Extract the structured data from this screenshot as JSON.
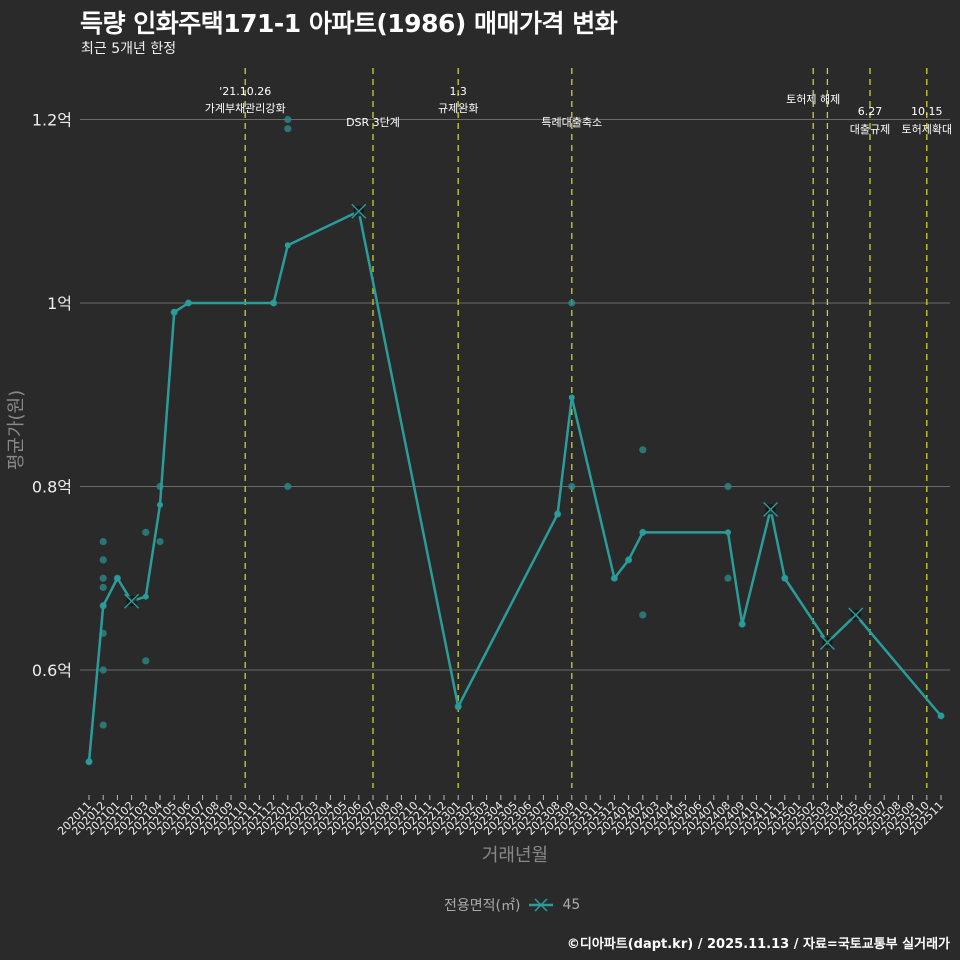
{
  "header": {
    "title": "득량 인화주택171-1 아파트(1986) 매매가격 변화",
    "subtitle": "최근 5개년 한정"
  },
  "footer": {
    "caption": "©디아파트(dapt.kr) / 2025.11.13 / 자료=국토교통부 실거래가"
  },
  "legend": {
    "title": "전용면적(㎡)",
    "items": [
      {
        "label": "45",
        "color": "#2a9d9a"
      }
    ]
  },
  "colors": {
    "background": "#2b2a2b",
    "line": "#2a9d9a",
    "point": "#2a8a88",
    "grid": "#6a6a6a",
    "event_line": "#c8d42a",
    "text": "#ffffff",
    "axis_title": "#888888"
  },
  "chart_data": {
    "type": "line",
    "title": "득량 인화주택171-1 아파트(1986) 매매가격 변화",
    "subtitle": "최근 5개년 한정",
    "xlabel": "거래년월",
    "ylabel": "평균가(원)",
    "ylim": [
      0.48,
      1.25
    ],
    "yticks": [
      {
        "value": 0.6,
        "label": "0.6억"
      },
      {
        "value": 0.8,
        "label": "0.8억"
      },
      {
        "value": 1.0,
        "label": "1억"
      },
      {
        "value": 1.2,
        "label": "1.2억"
      }
    ],
    "grid": true,
    "legend_position": "bottom",
    "x_categories": [
      "202011",
      "202012",
      "202101",
      "202102",
      "202103",
      "202104",
      "202105",
      "202106",
      "202107",
      "202108",
      "202109",
      "202110",
      "202111",
      "202112",
      "202201",
      "202202",
      "202203",
      "202204",
      "202205",
      "202206",
      "202207",
      "202208",
      "202209",
      "202210",
      "202211",
      "202212",
      "202301",
      "202302",
      "202303",
      "202304",
      "202305",
      "202306",
      "202307",
      "202308",
      "202309",
      "202310",
      "202311",
      "202312",
      "202401",
      "202402",
      "202403",
      "202404",
      "202405",
      "202406",
      "202407",
      "202408",
      "202409",
      "202410",
      "202411",
      "202412",
      "202501",
      "202502",
      "202503",
      "202504",
      "202505",
      "202506",
      "202507",
      "202508",
      "202509",
      "202510",
      "202511"
    ],
    "series": [
      {
        "name": "45",
        "unit": "억",
        "points": [
          {
            "x": "202011",
            "y": 0.5
          },
          {
            "x": "202012",
            "y": 0.67
          },
          {
            "x": "202101",
            "y": 0.7
          },
          {
            "x": "202102",
            "y": 0.675,
            "marker": "x"
          },
          {
            "x": "202103",
            "y": 0.68
          },
          {
            "x": "202104",
            "y": 0.78
          },
          {
            "x": "202105",
            "y": 0.99
          },
          {
            "x": "202106",
            "y": 1.0
          },
          {
            "x": "202112",
            "y": 1.0
          },
          {
            "x": "202201",
            "y": 1.063
          },
          {
            "x": "202206",
            "y": 1.1,
            "marker": "x"
          },
          {
            "x": "202301",
            "y": 0.56
          },
          {
            "x": "202308",
            "y": 0.77
          },
          {
            "x": "202309",
            "y": 0.897
          },
          {
            "x": "202312",
            "y": 0.7
          },
          {
            "x": "202401",
            "y": 0.72
          },
          {
            "x": "202402",
            "y": 0.75
          },
          {
            "x": "202408",
            "y": 0.75
          },
          {
            "x": "202409",
            "y": 0.65
          },
          {
            "x": "202411",
            "y": 0.775,
            "marker": "x"
          },
          {
            "x": "202412",
            "y": 0.7
          },
          {
            "x": "202503",
            "y": 0.63,
            "marker": "x"
          },
          {
            "x": "202505",
            "y": 0.66,
            "marker": "x"
          },
          {
            "x": "202511",
            "y": 0.55
          }
        ]
      }
    ],
    "scatter_individual_trades": [
      {
        "x": "202011",
        "y": 0.5
      },
      {
        "x": "202012",
        "y": 0.74
      },
      {
        "x": "202012",
        "y": 0.72
      },
      {
        "x": "202012",
        "y": 0.7,
        "marker": "x"
      },
      {
        "x": "202012",
        "y": 0.69
      },
      {
        "x": "202012",
        "y": 0.67
      },
      {
        "x": "202012",
        "y": 0.64
      },
      {
        "x": "202012",
        "y": 0.6
      },
      {
        "x": "202012",
        "y": 0.54
      },
      {
        "x": "202101",
        "y": 0.7
      },
      {
        "x": "202103",
        "y": 0.75
      },
      {
        "x": "202103",
        "y": 0.61
      },
      {
        "x": "202104",
        "y": 0.8
      },
      {
        "x": "202104",
        "y": 0.74
      },
      {
        "x": "202105",
        "y": 0.99
      },
      {
        "x": "202106",
        "y": 1.0
      },
      {
        "x": "202112",
        "y": 1.0
      },
      {
        "x": "202201",
        "y": 1.2
      },
      {
        "x": "202201",
        "y": 1.19
      },
      {
        "x": "202201",
        "y": 0.8
      },
      {
        "x": "202301",
        "y": 0.56
      },
      {
        "x": "202308",
        "y": 0.77
      },
      {
        "x": "202309",
        "y": 1.0
      },
      {
        "x": "202309",
        "y": 0.8
      },
      {
        "x": "202312",
        "y": 0.7
      },
      {
        "x": "202401",
        "y": 0.72
      },
      {
        "x": "202402",
        "y": 0.84
      },
      {
        "x": "202402",
        "y": 0.75
      },
      {
        "x": "202402",
        "y": 0.66
      },
      {
        "x": "202408",
        "y": 0.8
      },
      {
        "x": "202408",
        "y": 0.7
      },
      {
        "x": "202409",
        "y": 0.65
      },
      {
        "x": "202412",
        "y": 0.7
      },
      {
        "x": "202511",
        "y": 0.55
      }
    ],
    "annotations": [
      {
        "x": "202110",
        "lines": [
          "'21.10.26",
          "가계부채관리강화"
        ]
      },
      {
        "x": "202207",
        "lines": [
          "DSR 3단계"
        ]
      },
      {
        "x": "202301",
        "lines": [
          "1.3",
          "규제완화"
        ]
      },
      {
        "x": "202309",
        "lines": [
          "특례대출축소"
        ]
      },
      {
        "x": "202502",
        "lines": [
          "토허제 해제"
        ]
      },
      {
        "x": "202503",
        "lines": []
      },
      {
        "x": "202506",
        "lines": [
          "6.27",
          "대출규제"
        ]
      },
      {
        "x": "202510",
        "lines": [
          "10.15",
          "토허제확대"
        ]
      }
    ]
  }
}
